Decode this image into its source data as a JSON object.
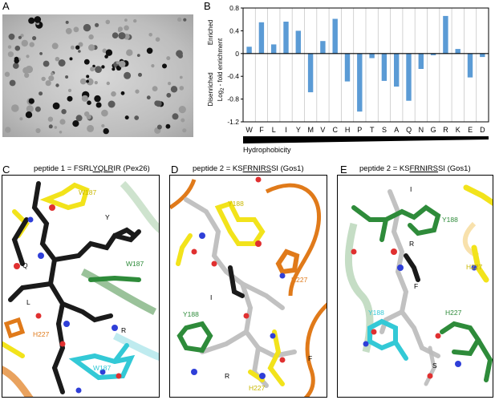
{
  "panels": {
    "a": {
      "letter": "A"
    },
    "b": {
      "letter": "B"
    },
    "c": {
      "letter": "C",
      "caption_prefix": "peptide 1 = FSRL",
      "caption_underlined": "YQLR",
      "caption_suffix": "IR (Pex26)",
      "labels": {
        "w187_top": "W187",
        "y": "Y",
        "q": "Q",
        "w187_mid": "W187",
        "l": "L",
        "r": "R",
        "h227": "H227",
        "w187_bottom": "W187"
      }
    },
    "d": {
      "letter": "D",
      "caption_prefix": "peptide 2 = KS",
      "caption_underlined": "FRNIRS",
      "caption_suffix": "SI (Gos1)",
      "labels": {
        "y188_top": "Y188",
        "h227_right": "H227",
        "i": "I",
        "y188_green": "Y188",
        "r": "R",
        "f": "F",
        "h227_bottom": "H227"
      }
    },
    "e": {
      "letter": "E",
      "caption_prefix": "peptide 2 = KS",
      "caption_underlined": "FRNIRS",
      "caption_suffix": "SI (Gos1)",
      "labels": {
        "i": "I",
        "y188_green": "Y188",
        "r": "R",
        "h227_yellow": "H227",
        "f": "F",
        "y188_cyan": "Y188",
        "h227_green": "H227",
        "s": "S"
      }
    }
  },
  "colors": {
    "bar": "#5b9bd5",
    "yellow": "#f2e31b",
    "green": "#2e8b3a",
    "orange": "#e07a1a",
    "cyan": "#33c9d6",
    "black": "#1a1a1a",
    "blue": "#2f3fd8",
    "red": "#e03030"
  },
  "chart_data": {
    "type": "bar",
    "ylabel": "Log2 - fold enrichment",
    "ylabel_main": "Log",
    "ylabel_sub": "2",
    "ylabel_rest": " - fold enrichment",
    "enriched_label": "Enriched",
    "disenriched_label": "Disenriched",
    "xlabel": "Hydrophobicity",
    "ylim": [
      -1.2,
      0.8
    ],
    "yticks": [
      "0.8",
      "0.4",
      "0",
      "-0.4",
      "-0.8",
      "-1.2"
    ],
    "ytick_values": [
      0.8,
      0.4,
      0,
      -0.4,
      -0.8,
      -1.2
    ],
    "categories": [
      "W",
      "F",
      "L",
      "I",
      "Y",
      "M",
      "V",
      "C",
      "H",
      "P",
      "T",
      "S",
      "A",
      "Q",
      "N",
      "G",
      "R",
      "K",
      "E",
      "D"
    ],
    "values": [
      0.12,
      0.55,
      0.16,
      0.56,
      0.4,
      -0.68,
      0.22,
      0.61,
      -0.49,
      -1.02,
      -0.08,
      -0.48,
      -0.58,
      -0.83,
      -0.27,
      -0.03,
      0.66,
      0.08,
      -0.42,
      -0.06
    ],
    "grid": "vertical"
  }
}
